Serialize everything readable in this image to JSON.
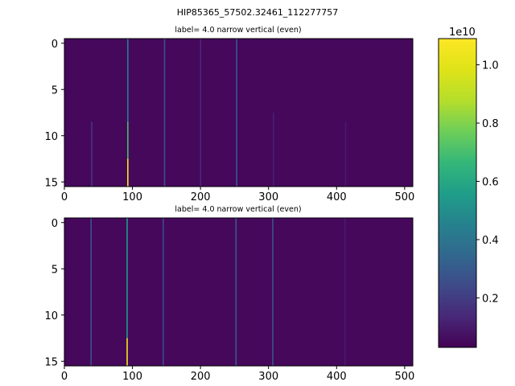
{
  "suptitle": "HIP85365_57502.32461_112277757",
  "colorbar": {
    "multiplier_label": "1e10",
    "ticks": [
      0.2,
      0.4,
      0.6,
      0.8,
      1.0
    ],
    "tick_labels": [
      "0.2",
      "0.4",
      "0.6",
      "0.8",
      "1.0"
    ],
    "range": [
      0.03,
      1.09
    ],
    "colormap": "viridis"
  },
  "chart_data": [
    {
      "type": "heatmap",
      "title": "label= 4.0 narrow vertical (even)",
      "xlabel": "",
      "ylabel": "",
      "xlim": [
        0,
        512
      ],
      "ylim": [
        15.5,
        -0.5
      ],
      "rows": 16,
      "cols": 512,
      "xticks": [
        0,
        100,
        200,
        300,
        400,
        500
      ],
      "yticks": [
        0,
        5,
        10,
        15
      ],
      "background_level": 0.05,
      "features": [
        {
          "x": 40,
          "level": 0.18,
          "rows": [
            9,
            15
          ]
        },
        {
          "x": 93,
          "level": 0.45,
          "rows": [
            0,
            8
          ]
        },
        {
          "x": 93,
          "level": 0.7,
          "rows": [
            9,
            12
          ]
        },
        {
          "x": 93,
          "level": 1.08,
          "rows": [
            13,
            15
          ]
        },
        {
          "x": 147,
          "level": 0.26,
          "rows": [
            0,
            15
          ]
        },
        {
          "x": 200,
          "level": 0.14,
          "rows": [
            0,
            15
          ]
        },
        {
          "x": 253,
          "level": 0.3,
          "rows": [
            0,
            15
          ]
        },
        {
          "x": 307,
          "level": 0.12,
          "rows": [
            8,
            15
          ]
        },
        {
          "x": 413,
          "level": 0.1,
          "rows": [
            9,
            15
          ]
        }
      ]
    },
    {
      "type": "heatmap",
      "title": "label= 4.0 narrow vertical (even)",
      "xlabel": "",
      "ylabel": "",
      "xlim": [
        0,
        512
      ],
      "ylim": [
        15.5,
        -0.5
      ],
      "rows": 16,
      "cols": 512,
      "xticks": [
        0,
        100,
        200,
        300,
        400,
        500
      ],
      "yticks": [
        0,
        5,
        10,
        15
      ],
      "background_level": 0.05,
      "features": [
        {
          "x": 39,
          "level": 0.26,
          "rows": [
            0,
            15
          ]
        },
        {
          "x": 92,
          "level": 0.55,
          "rows": [
            0,
            12
          ]
        },
        {
          "x": 92,
          "level": 1.05,
          "rows": [
            13,
            15
          ]
        },
        {
          "x": 145,
          "level": 0.24,
          "rows": [
            0,
            15
          ]
        },
        {
          "x": 252,
          "level": 0.3,
          "rows": [
            0,
            15
          ]
        },
        {
          "x": 306,
          "level": 0.28,
          "rows": [
            0,
            15
          ]
        },
        {
          "x": 412,
          "level": 0.1,
          "rows": [
            0,
            15
          ]
        }
      ]
    }
  ]
}
